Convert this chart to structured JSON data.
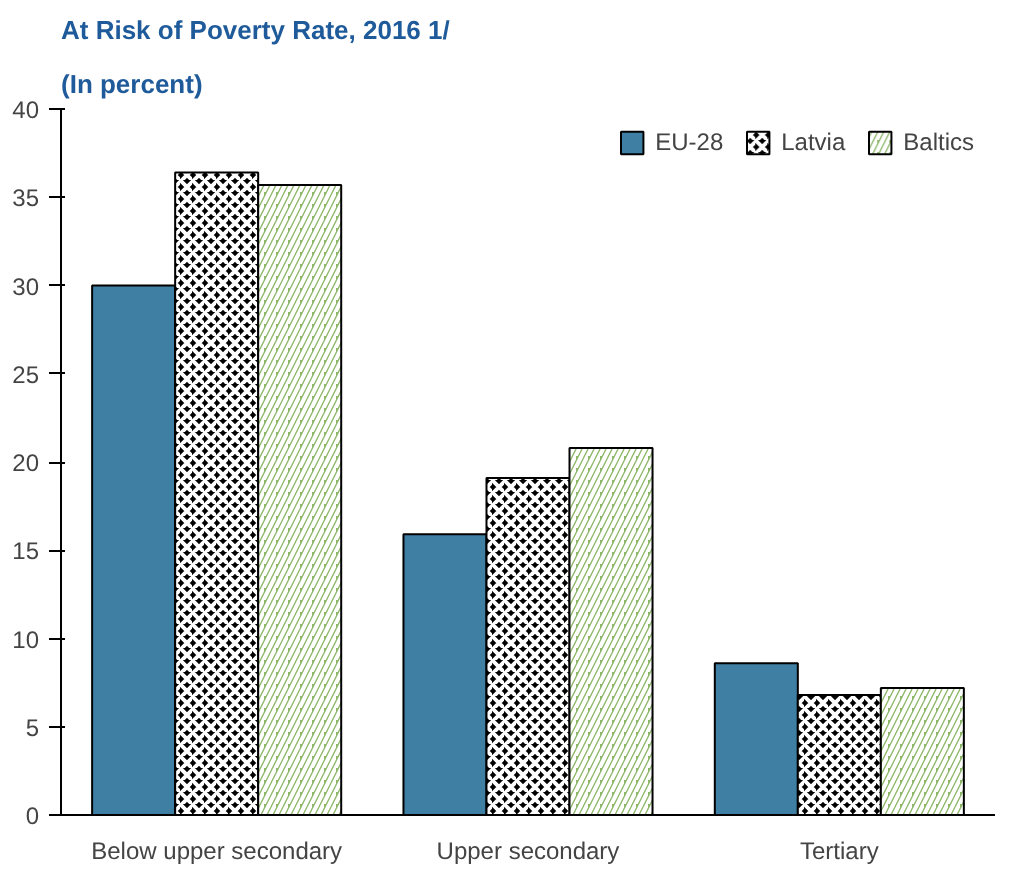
{
  "chart_data": {
    "type": "bar",
    "title": "At Risk of Poverty Rate, 2016 1/",
    "subtitle": "(In percent)",
    "categories": [
      "Below upper secondary",
      "Upper secondary",
      "Tertiary"
    ],
    "series": [
      {
        "name": "EU-28",
        "color": "#3f7fa3",
        "values": [
          30.0,
          15.9,
          8.6
        ]
      },
      {
        "name": "Latvia",
        "color": "#000000",
        "values": [
          36.4,
          19.1,
          6.8
        ]
      },
      {
        "name": "Baltics",
        "color": "#8db86a",
        "values": [
          35.7,
          20.8,
          7.2
        ]
      }
    ],
    "ylim": [
      0,
      40
    ],
    "yticks": [
      0,
      5,
      10,
      15,
      20,
      25,
      30,
      35,
      40
    ],
    "grid": false,
    "legend": "top right"
  }
}
